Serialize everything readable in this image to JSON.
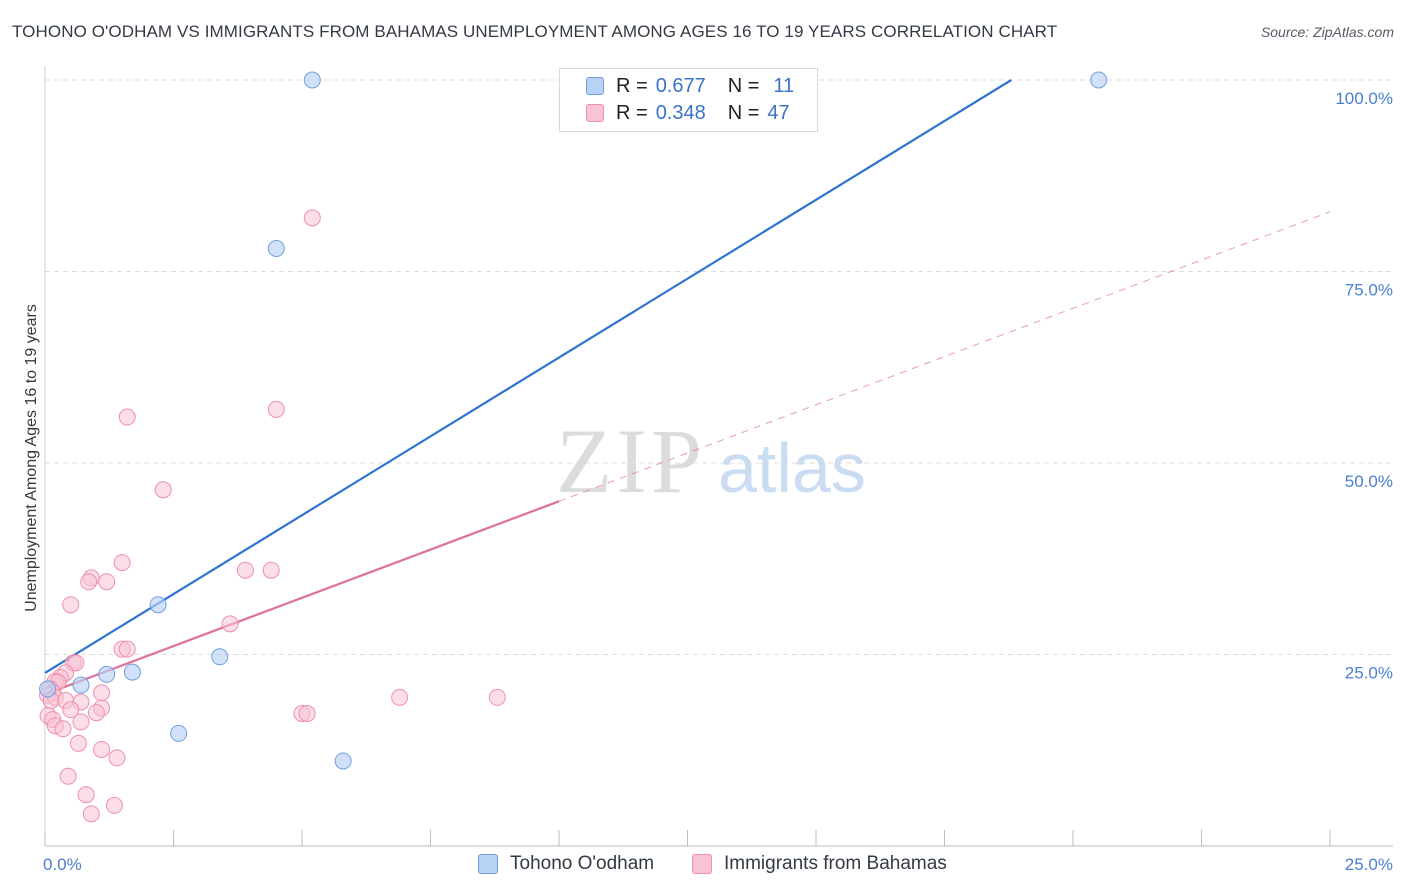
{
  "title": "TOHONO O'ODHAM VS IMMIGRANTS FROM BAHAMAS UNEMPLOYMENT AMONG AGES 16 TO 19 YEARS CORRELATION CHART",
  "source": "Source: ZipAtlas.com",
  "watermark": {
    "zip": "ZIP",
    "atlas": "atlas"
  },
  "legend": {
    "r_label": "R =",
    "n_label": "N =",
    "series": [
      {
        "r": "0.677",
        "n": "11"
      },
      {
        "r": "0.348",
        "n": "47"
      }
    ]
  },
  "colors": {
    "blue_fill": "#b8d2f5",
    "blue_stroke": "#6f9fe0",
    "blue_line": "#2e74d0",
    "pink_fill": "#f8c3d4",
    "pink_stroke": "#ef8fae",
    "pink_line": "#e0709a",
    "grid": "#dddddd",
    "tick_text": "#4a7fd0"
  },
  "chart_data": {
    "type": "scatter",
    "title": "TOHONO O'ODHAM VS IMMIGRANTS FROM BAHAMAS UNEMPLOYMENT AMONG AGES 16 TO 19 YEARS CORRELATION CHART",
    "xlabel": "",
    "ylabel": "Unemployment Among Ages 16 to 19 years",
    "xlim": [
      0,
      25
    ],
    "ylim": [
      0,
      100
    ],
    "x_tick_labels": [
      "0.0%",
      "25.0%"
    ],
    "y_ticks": [
      25,
      50,
      75,
      100
    ],
    "y_tick_labels": [
      "25.0%",
      "50.0%",
      "75.0%",
      "100.0%"
    ],
    "grid": true,
    "series": [
      {
        "name": "Tohono O'odham",
        "r": 0.677,
        "n": 11,
        "points": [
          [
            5.2,
            100.0
          ],
          [
            20.5,
            100.0
          ],
          [
            4.5,
            78.0
          ],
          [
            2.2,
            31.5
          ],
          [
            3.4,
            24.7
          ],
          [
            1.7,
            22.7
          ],
          [
            1.2,
            22.4
          ],
          [
            0.7,
            21.0
          ],
          [
            0.05,
            20.5
          ],
          [
            2.6,
            14.7
          ],
          [
            5.8,
            11.1
          ]
        ],
        "trend": {
          "x": [
            0.0,
            18.8
          ],
          "y": [
            22.6,
            100.0
          ],
          "dashed_extension": false
        }
      },
      {
        "name": "Immigrants from Bahamas",
        "r": 0.348,
        "n": 47,
        "points": [
          [
            5.2,
            82.0
          ],
          [
            1.6,
            56.0
          ],
          [
            4.5,
            57.0
          ],
          [
            2.3,
            46.5
          ],
          [
            1.5,
            37.0
          ],
          [
            0.9,
            35.0
          ],
          [
            0.85,
            34.5
          ],
          [
            1.2,
            34.5
          ],
          [
            3.9,
            36.0
          ],
          [
            4.4,
            36.0
          ],
          [
            0.5,
            31.5
          ],
          [
            3.6,
            29.0
          ],
          [
            1.5,
            25.7
          ],
          [
            1.6,
            25.7
          ],
          [
            0.55,
            23.9
          ],
          [
            0.6,
            23.9
          ],
          [
            0.4,
            22.6
          ],
          [
            0.3,
            22.0
          ],
          [
            0.2,
            21.5
          ],
          [
            0.25,
            21.4
          ],
          [
            0.1,
            20.5
          ],
          [
            0.15,
            20.0
          ],
          [
            0.05,
            19.7
          ],
          [
            0.2,
            19.4
          ],
          [
            0.12,
            19.0
          ],
          [
            0.4,
            19.0
          ],
          [
            0.7,
            18.8
          ],
          [
            1.1,
            20.0
          ],
          [
            1.1,
            18.0
          ],
          [
            0.5,
            17.8
          ],
          [
            1.0,
            17.4
          ],
          [
            0.06,
            17.0
          ],
          [
            0.15,
            16.5
          ],
          [
            0.7,
            16.2
          ],
          [
            0.2,
            15.7
          ],
          [
            0.35,
            15.3
          ],
          [
            0.65,
            13.4
          ],
          [
            1.1,
            12.6
          ],
          [
            1.4,
            11.5
          ],
          [
            0.45,
            9.1
          ],
          [
            0.8,
            6.7
          ],
          [
            1.35,
            5.3
          ],
          [
            0.9,
            4.2
          ],
          [
            5.0,
            17.3
          ],
          [
            5.1,
            17.3
          ],
          [
            6.9,
            19.4
          ],
          [
            8.8,
            19.4
          ]
        ],
        "trend": {
          "x": [
            0.0,
            10.0
          ],
          "y": [
            19.8,
            45.0
          ],
          "dashed_extension": {
            "x": [
              10.0,
              25.0
            ],
            "y": [
              45.0,
              82.8
            ]
          }
        }
      }
    ]
  },
  "bottom_legend": [
    {
      "label": "Tohono O'odham"
    },
    {
      "label": "Immigrants from Bahamas"
    }
  ]
}
